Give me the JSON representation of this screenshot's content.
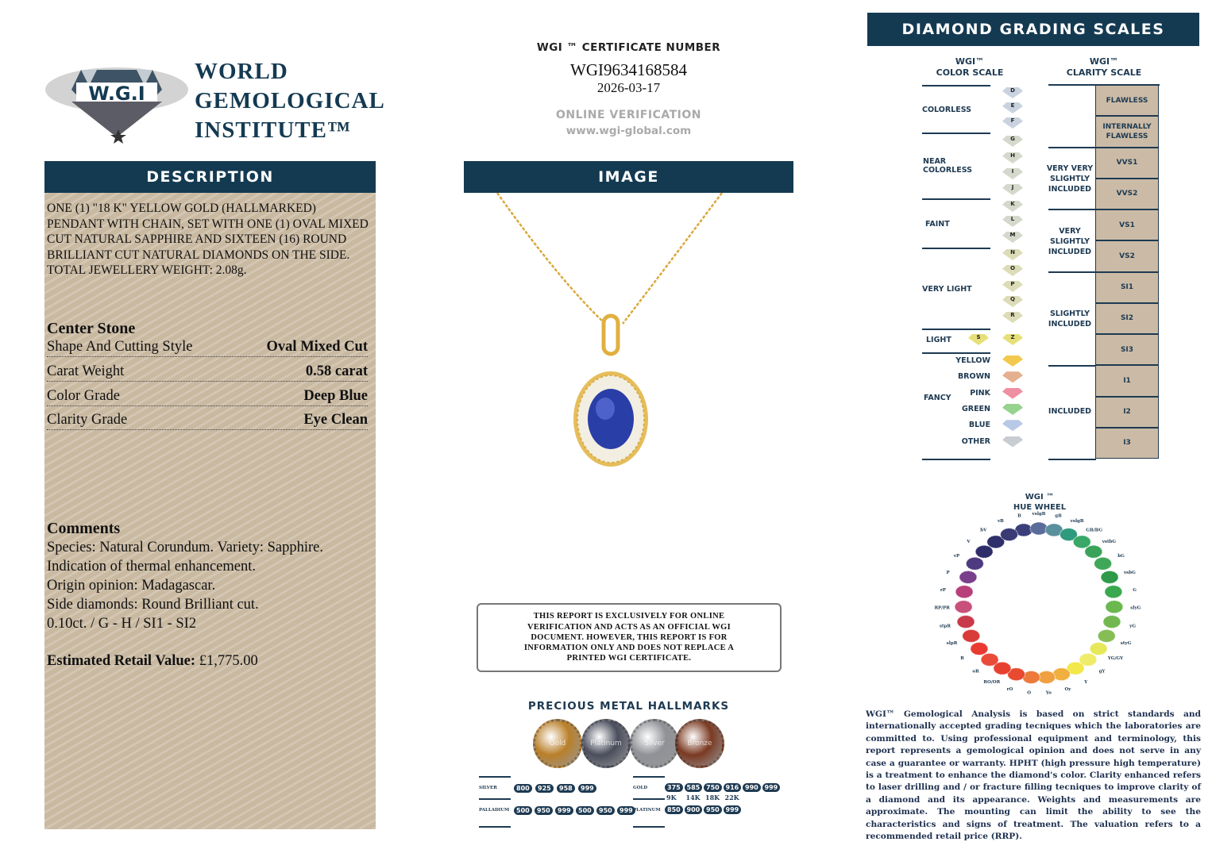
{
  "logo": {
    "emblem_text": "W.G.I",
    "ring_text": "WORLD GEMOLOGICAL INSTITUTE",
    "line1": "WORLD",
    "line2": "GEMOLOGICAL",
    "line3": "INSTITUTE™"
  },
  "description": {
    "header": "DESCRIPTION",
    "text": "ONE (1) \"18 K\" YELLOW GOLD (HALLMARKED) PENDANT WITH CHAIN, SET WITH ONE (1) OVAL MIXED CUT NATURAL SAPPHIRE AND SIXTEEN (16) ROUND BRILLIANT CUT NATURAL DIAMONDS ON THE SIDE. TOTAL JEWELLERY WEIGHT: 2.08g.",
    "center_stone_title": "Center Stone",
    "rows": [
      {
        "label": "Shape And Cutting Style",
        "value": "Oval Mixed Cut"
      },
      {
        "label": "Carat Weight",
        "value": "0.58 carat"
      },
      {
        "label": "Color Grade",
        "value": "Deep Blue"
      },
      {
        "label": "Clarity Grade",
        "value": "Eye Clean"
      }
    ],
    "comments_title": "Comments",
    "comments": [
      "Species: Natural Corundum. Variety: Sapphire.",
      "Indication of thermal enhancement.",
      "Origin opinion: Madagascar.",
      "Side diamonds: Round Brilliant cut.",
      "0.10ct. / G - H / SI1 - SI2"
    ],
    "retail_label": "Estimated Retail Value:",
    "retail_value": "£1,775.00"
  },
  "certificate": {
    "label": "WGI ™ CERTIFICATE NUMBER",
    "number": "WGI9634168584",
    "date": "2026-03-17",
    "verification": "ONLINE VERIFICATION",
    "url": "www.wgi-global.com"
  },
  "image": {
    "header": "IMAGE"
  },
  "notice": "THIS REPORT IS EXCLUSIVELY FOR ONLINE VERIFICATION AND ACTS AS AN OFFICIAL WGI DOCUMENT. HOWEVER, THIS REPORT IS FOR INFORMATION ONLY AND DOES NOT REPLACE A PRINTED WGI CERTIFICATE.",
  "hallmarks": {
    "title": "PRECIOUS METAL HALLMARKS",
    "coins": [
      {
        "label": "Gold",
        "color": "#b97f2a"
      },
      {
        "label": "Platinum",
        "color": "#4a4d5c"
      },
      {
        "label": "Silver",
        "color": "#8f9196"
      },
      {
        "label": "Bronze",
        "color": "#7a3a22"
      }
    ],
    "silver_label": "SILVER",
    "silver": [
      "800",
      "925",
      "958",
      "999"
    ],
    "palladium_label": "PALLADIUM",
    "palladium": [
      "500",
      "950",
      "999",
      "500",
      "950",
      "999"
    ],
    "gold_label": "GOLD",
    "gold": [
      "375",
      "585",
      "750",
      "916",
      "990",
      "999"
    ],
    "gold_karats": [
      "9K",
      "14K",
      "18K",
      "22K"
    ],
    "platinum_label": "PLATINUM",
    "platinum": [
      "850",
      "900",
      "950",
      "999"
    ]
  },
  "grading": {
    "header": "DIAMOND GRADING  SCALES",
    "color_scale_title1": "WGI™",
    "color_scale_title2": "COLOR SCALE",
    "clarity_scale_title1": "WGI™",
    "clarity_scale_title2": "CLARITY SCALE",
    "color_groups": [
      "COLORLESS",
      "NEAR COLORLESS",
      "FAINT",
      "VERY LIGHT",
      "LIGHT",
      "FANCY"
    ],
    "color_grades": [
      "D",
      "E",
      "F",
      "G",
      "H",
      "I",
      "J",
      "K",
      "L",
      "M",
      "N",
      "O",
      "P",
      "Q",
      "R"
    ],
    "light_grades": [
      "S",
      "Z"
    ],
    "fancy": [
      {
        "label": "YELLOW",
        "color": "#f2c94c"
      },
      {
        "label": "BROWN",
        "color": "#e5b08f"
      },
      {
        "label": "PINK",
        "color": "#ef8fa2"
      },
      {
        "label": "GREEN",
        "color": "#95d38e"
      },
      {
        "label": "BLUE",
        "color": "#b7c9e6"
      },
      {
        "label": "OTHER",
        "color": "#c8ccd3"
      }
    ],
    "clarity_groups": [
      "VERY VERY SLIGHTLY INCLUDED",
      "VERY SLIGHTLY INCLUDED",
      "SLIGHTLY INCLUDED",
      "INCLUDED"
    ],
    "clarity_grades": [
      "FLAWLESS",
      "INTERNALLY FLAWLESS",
      "VVS1",
      "VVS2",
      "VS1",
      "VS2",
      "SI1",
      "SI2",
      "SI3",
      "I1",
      "I2",
      "I3"
    ]
  },
  "hue_wheel": {
    "title1": "WGI ™",
    "title2": "HUE WHEEL",
    "labels": [
      "B",
      "vslgB",
      "gB",
      "vslgB",
      "GB/BG",
      "vstbG",
      "bG",
      "vsbG",
      "G",
      "slyG",
      "yG",
      "styG",
      "YG/GY",
      "gY",
      "Y",
      "Oy",
      "Yo",
      "O",
      "rO",
      "RO/OR",
      "oR",
      "R",
      "slpR",
      "stpR",
      "RP/PR",
      "rP",
      "P",
      "vP",
      "V",
      "bV",
      "vB"
    ],
    "colors": [
      "#3a3f7a",
      "#5a6c9a",
      "#5a8f9c",
      "#2f9a7e",
      "#3aa866",
      "#3aa35a",
      "#3fa858",
      "#2f9a4a",
      "#3aa84e",
      "#6ab84e",
      "#72b850",
      "#86bd55",
      "#e6e85a",
      "#eeec6a",
      "#f2e84a",
      "#f0b040",
      "#f0a040",
      "#ec7a3a",
      "#e84a30",
      "#e84030",
      "#ea4a38",
      "#e83a30",
      "#d93a3a",
      "#c83a4a",
      "#c8507a",
      "#b8407a",
      "#7a3f8a",
      "#4e3a80",
      "#2e2d6a",
      "#2f2f6a",
      "#3a3a75"
    ]
  },
  "disclaimer": "WGI™ Gemological Analysis is based on strict standards and internationally accepted grading tecniques which the laboratories are committed to. Using professional equipment and terminology, this report represents a gemological opinion and does not serve in any case a guarantee or warranty. HPHT (high pressure high temperature) is a treatment to enhance the diamond's color. Clarity enhanced refers to laser drilling and / or fracture filling tecniques to improve clarity of a diamond and its appearance. Weights and measurements are approximate. The mounting can limit the ability to see the characteristics and signs of treatment. The valuation refers to a recommended retail price (RRP)."
}
